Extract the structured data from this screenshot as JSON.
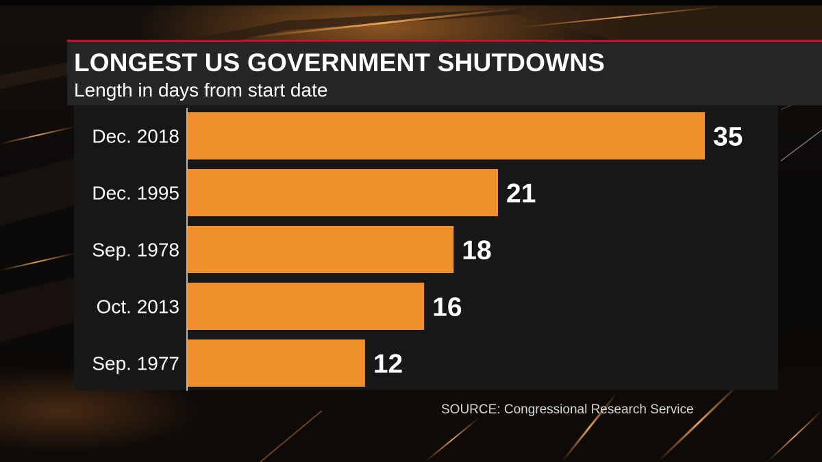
{
  "header": {
    "title": "LONGEST US GOVERNMENT SHUTDOWNS",
    "subtitle": "Length in days from start date"
  },
  "footer": {
    "source": "SOURCE: Congressional Research Service"
  },
  "colors": {
    "bar": "#f0902a",
    "accent_rule": "#c8102e",
    "text": "#ffffff"
  },
  "chart_data": {
    "type": "bar",
    "orientation": "horizontal",
    "title": "LONGEST US GOVERNMENT SHUTDOWNS",
    "subtitle": "Length in days from start date",
    "categories": [
      "Dec. 2018",
      "Dec. 1995",
      "Sep. 1978",
      "Oct. 2013",
      "Sep. 1977"
    ],
    "values": [
      35,
      21,
      18,
      16,
      12
    ],
    "data_labels": [
      "35",
      "21",
      "18",
      "16",
      "12"
    ],
    "xlim": [
      0,
      35
    ],
    "grid": false,
    "legend": "none"
  }
}
